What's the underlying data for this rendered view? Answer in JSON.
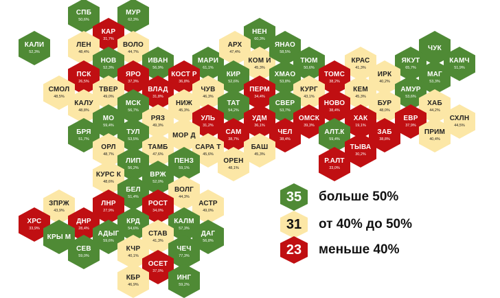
{
  "colors": {
    "green": "#4f8a35",
    "yellow": "#fce7a6",
    "red": "#c00f12"
  },
  "legend": [
    {
      "count": "35",
      "label": "больше 50%",
      "category": "green"
    },
    {
      "count": "31",
      "label": "от 40% до 50%",
      "category": "yellow"
    },
    {
      "count": "23",
      "label": "меньше 40%",
      "category": "red"
    }
  ],
  "regions": [
    {
      "code": "СПБ",
      "pct": "50,6%",
      "category": "green"
    },
    {
      "code": "МУР",
      "pct": "62,3%",
      "category": "green"
    },
    {
      "code": "КАР",
      "pct": "31,7%",
      "category": "red"
    },
    {
      "code": "КАЛИ",
      "pct": "52,3%",
      "category": "green"
    },
    {
      "code": "ЛЕН",
      "pct": "48,4%",
      "category": "yellow"
    },
    {
      "code": "ВОЛО",
      "pct": "44,7%",
      "category": "yellow"
    },
    {
      "code": "НЕН",
      "pct": "60,3%",
      "category": "green"
    },
    {
      "code": "ЧУК",
      "pct": "",
      "category": "green"
    },
    {
      "code": "НОВ",
      "pct": "52,3%",
      "category": "green"
    },
    {
      "code": "ИВАН",
      "pct": "56,9%",
      "category": "green"
    },
    {
      "code": "МАРИ",
      "pct": "61,1%",
      "category": "green"
    },
    {
      "code": "АРХ",
      "pct": "47,4%",
      "category": "yellow"
    },
    {
      "code": "КОМ И",
      "pct": "45,3%",
      "category": "yellow"
    },
    {
      "code": "ЯНАО",
      "pct": "58,5%",
      "category": "green"
    },
    {
      "code": "ТЮМ",
      "pct": "50,6%",
      "category": "green"
    },
    {
      "code": "КРАС",
      "pct": "41,3%",
      "category": "yellow"
    },
    {
      "code": "ЯКУТ",
      "pct": "65,7%",
      "category": "green"
    },
    {
      "code": "КАМЧ",
      "pct": "51,9%",
      "category": "green"
    },
    {
      "code": "ПСК",
      "pct": "26,5%",
      "category": "red"
    },
    {
      "code": "ЯРО",
      "pct": "37,3%",
      "category": "red"
    },
    {
      "code": "КОСТ Р",
      "pct": "36,8%",
      "category": "red"
    },
    {
      "code": "КИР",
      "pct": "52,6%",
      "category": "green"
    },
    {
      "code": "ХМАО",
      "pct": "53,8%",
      "category": "green"
    },
    {
      "code": "ТОМС",
      "pct": "38,2%",
      "category": "red"
    },
    {
      "code": "ИРК",
      "pct": "40,2%",
      "category": "yellow"
    },
    {
      "code": "МАГ",
      "pct": "53,3%",
      "category": "green"
    },
    {
      "code": "СМОЛ",
      "pct": "48,5%",
      "category": "yellow"
    },
    {
      "code": "ТВЕР",
      "pct": "49,0%",
      "category": "yellow"
    },
    {
      "code": "ВЛАД",
      "pct": "31,8%",
      "category": "red"
    },
    {
      "code": "ЧУВ",
      "pct": "46,3%",
      "category": "yellow"
    },
    {
      "code": "ПЕРМ",
      "pct": "34,4%",
      "category": "red"
    },
    {
      "code": "КУРГ",
      "pct": "43,1%",
      "category": "yellow"
    },
    {
      "code": "КЕМ",
      "pct": "45,3%",
      "category": "yellow"
    },
    {
      "code": "АМУР",
      "pct": "53,6%",
      "category": "green"
    },
    {
      "code": "КАЛУ",
      "pct": "48,8%",
      "category": "yellow"
    },
    {
      "code": "МСК",
      "pct": "56,7%",
      "category": "green"
    },
    {
      "code": "НИЖ",
      "pct": "45,3%",
      "category": "yellow"
    },
    {
      "code": "ТАТ",
      "pct": "54,2%",
      "category": "green"
    },
    {
      "code": "СВЕР",
      "pct": "53,7%",
      "category": "green"
    },
    {
      "code": "НОВО",
      "pct": "38,4%",
      "category": "red"
    },
    {
      "code": "БУР",
      "pct": "48,0%",
      "category": "yellow"
    },
    {
      "code": "ХАБ",
      "pct": "44,2%",
      "category": "yellow"
    },
    {
      "code": "МО",
      "pct": "59,4%",
      "category": "green"
    },
    {
      "code": "РЯЗ",
      "pct": "49,3%",
      "category": "yellow"
    },
    {
      "code": "УЛЬ",
      "pct": "31,2%",
      "category": "red"
    },
    {
      "code": "УДМ",
      "pct": "36,1%",
      "category": "red"
    },
    {
      "code": "ОМСК",
      "pct": "39,3%",
      "category": "red"
    },
    {
      "code": "ХАК",
      "pct": "19,1%",
      "category": "red"
    },
    {
      "code": "ЕВР",
      "pct": "37,9%",
      "category": "red"
    },
    {
      "code": "СХЛН",
      "pct": "44,5%",
      "category": "yellow"
    },
    {
      "code": "БРЯ",
      "pct": "51,7%",
      "category": "green"
    },
    {
      "code": "ТУЛ",
      "pct": "53,5%",
      "category": "green"
    },
    {
      "code": "МОР Д",
      "pct": "",
      "category": "yellow"
    },
    {
      "code": "САМ",
      "pct": "38,7%",
      "category": "red"
    },
    {
      "code": "ЧЕЛ",
      "pct": "38,4%",
      "category": "red"
    },
    {
      "code": "АЛТ.К",
      "pct": "59,4%",
      "category": "green"
    },
    {
      "code": "ЗАБ",
      "pct": "38,8%",
      "category": "red"
    },
    {
      "code": "ПРИМ",
      "pct": "40,4%",
      "category": "yellow"
    },
    {
      "code": "ОРЛ",
      "pct": "48,7%",
      "category": "yellow"
    },
    {
      "code": "ТАМБ",
      "pct": "47,6%",
      "category": "yellow"
    },
    {
      "code": "САРА Т",
      "pct": "45,6%",
      "category": "yellow"
    },
    {
      "code": "БАШ",
      "pct": "45,3%",
      "category": "yellow"
    },
    {
      "code": "ТЫВА",
      "pct": "30,2%",
      "category": "red"
    },
    {
      "code": "ЛИП",
      "pct": "56,2%",
      "category": "green"
    },
    {
      "code": "ПЕНЗ",
      "pct": "59,1%",
      "category": "green"
    },
    {
      "code": "ОРЕН",
      "pct": "48,1%",
      "category": "yellow"
    },
    {
      "code": "Р.АЛТ",
      "pct": "33,0%",
      "category": "red"
    },
    {
      "code": "КУРС К",
      "pct": "48,6%",
      "category": "yellow"
    },
    {
      "code": "ВРЖ",
      "pct": "52,0%",
      "category": "green"
    },
    {
      "code": "БЕЛ",
      "pct": "51,4%",
      "category": "green"
    },
    {
      "code": "ВОЛГ",
      "pct": "44,3%",
      "category": "yellow"
    },
    {
      "code": "ЗПРЖ",
      "pct": "43,9%",
      "category": "yellow"
    },
    {
      "code": "ЛНР",
      "pct": "27,9%",
      "category": "red"
    },
    {
      "code": "РОСТ",
      "pct": "34,0%",
      "category": "red"
    },
    {
      "code": "АСТР",
      "pct": "49,0%",
      "category": "yellow"
    },
    {
      "code": "ХРС",
      "pct": "33,9%",
      "category": "red"
    },
    {
      "code": "ДНР",
      "pct": "28,4%",
      "category": "red"
    },
    {
      "code": "КРД",
      "pct": "54,6%",
      "category": "green"
    },
    {
      "code": "КАЛМ",
      "pct": "57,3%",
      "category": "green"
    },
    {
      "code": "КРЫ М",
      "pct": "",
      "category": "green"
    },
    {
      "code": "АДЫГ",
      "pct": "59,6%",
      "category": "green"
    },
    {
      "code": "СТАВ",
      "pct": "41,3%",
      "category": "yellow"
    },
    {
      "code": "ДАГ",
      "pct": "56,8%",
      "category": "green"
    },
    {
      "code": "СЕВ",
      "pct": "59,0%",
      "category": "green"
    },
    {
      "code": "КЧР",
      "pct": "40,1%",
      "category": "yellow"
    },
    {
      "code": "ЧЕЧ",
      "pct": "77,3%",
      "category": "green"
    },
    {
      "code": "ОСЕТ",
      "pct": "37,0%",
      "category": "red"
    },
    {
      "code": "КБР",
      "pct": "46,9%",
      "category": "yellow"
    },
    {
      "code": "ИНГ",
      "pct": "59,2%",
      "category": "green"
    }
  ]
}
